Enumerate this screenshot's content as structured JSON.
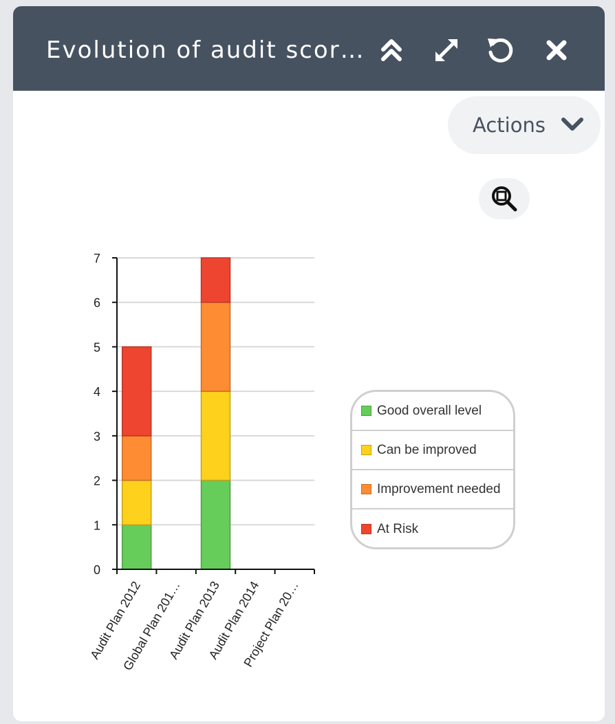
{
  "widget": {
    "title": "Evolution of audit scor…",
    "actions_label": "Actions",
    "icons": {
      "collapse": "double-chevron-up-icon",
      "maximize": "expand-arrows-icon",
      "refresh": "refresh-icon",
      "close": "close-icon",
      "actions_toggle": "chevron-down-icon",
      "zoom": "zoom-icon"
    }
  },
  "colors": {
    "header_bg": "#475261",
    "good": "#66cc5a",
    "improve": "#fdd11c",
    "needed": "#fe8c33",
    "risk": "#ee4530"
  },
  "chart_data": {
    "type": "bar",
    "stacked": true,
    "categories": [
      "Audit Plan 2012",
      "Global Plan 201…",
      "Audit Plan 2013",
      "Audit Plan 2014",
      "Project Plan 20…"
    ],
    "series": [
      {
        "name": "Good overall level",
        "color": "#66cc5a",
        "values": [
          1,
          0,
          2,
          0,
          0
        ]
      },
      {
        "name": "Can be improved",
        "color": "#fdd11c",
        "values": [
          1,
          0,
          2,
          0,
          0
        ]
      },
      {
        "name": "Improvement needed",
        "color": "#fe8c33",
        "values": [
          1,
          0,
          2,
          0,
          0
        ]
      },
      {
        "name": "At Risk",
        "color": "#ee4530",
        "values": [
          2,
          0,
          1,
          0,
          0
        ]
      }
    ],
    "y_ticks": [
      "0",
      "1",
      "2",
      "3",
      "4",
      "5",
      "6",
      "7"
    ],
    "ylim": [
      0,
      7
    ],
    "grid": true,
    "legend_position": "right"
  }
}
